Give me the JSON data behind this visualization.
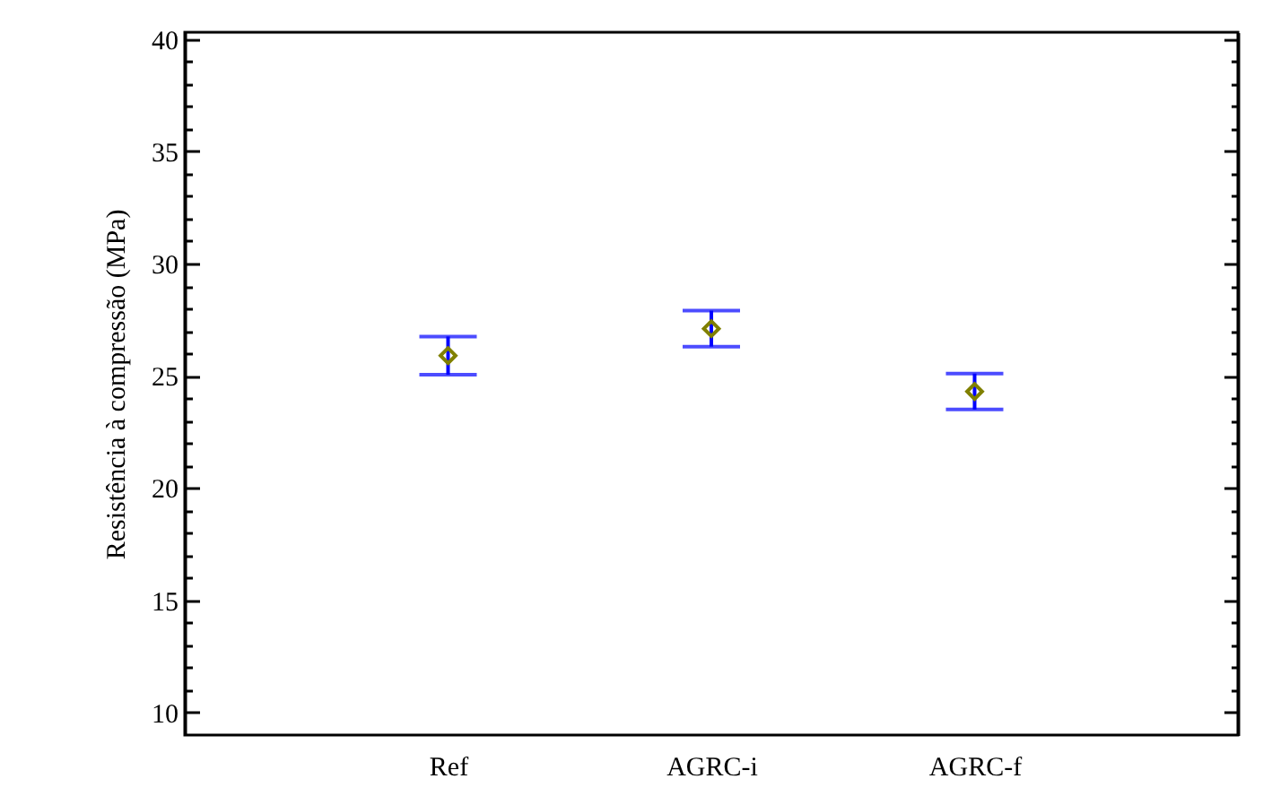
{
  "chart_data": {
    "type": "scatter",
    "ylabel": "Resistência à compressão (MPa)",
    "categories": [
      "Ref",
      "AGRC-i",
      "AGRC-f"
    ],
    "series": [
      {
        "color": "#808000",
        "values": [
          25.9,
          27.1,
          24.3
        ],
        "errors": [
          0.85,
          0.8,
          0.8
        ]
      }
    ],
    "marker": "diamond",
    "ylim": [
      9,
      40.3
    ],
    "yticks": [
      10,
      {
        "value": 11,
        "label": null
      },
      {
        "value": 12,
        "label": null
      },
      {
        "value": 13,
        "label": null
      },
      {
        "value": 14,
        "label": null
      },
      15,
      {
        "value": 16,
        "label": null
      },
      {
        "value": 17,
        "label": null
      },
      {
        "value": 18,
        "label": null
      },
      {
        "value": 19,
        "label": null
      },
      20,
      {
        "value": 21,
        "label": null
      },
      {
        "value": 22,
        "label": null
      },
      {
        "value": 23,
        "label": null
      },
      {
        "value": 24,
        "label": null
      },
      25,
      {
        "value": 26,
        "label": null
      },
      {
        "value": 27,
        "label": null
      },
      {
        "value": 28,
        "label": null
      },
      {
        "value": 29,
        "label": null
      },
      30,
      {
        "value": 31,
        "label": null
      },
      {
        "value": 32,
        "label": null
      },
      {
        "value": 33,
        "label": null
      },
      {
        "value": 34,
        "label": null
      },
      35,
      {
        "value": 36,
        "label": null
      },
      {
        "value": 37,
        "label": null
      },
      {
        "value": 38,
        "label": null
      },
      {
        "value": 39,
        "label": null
      },
      40
    ]
  }
}
